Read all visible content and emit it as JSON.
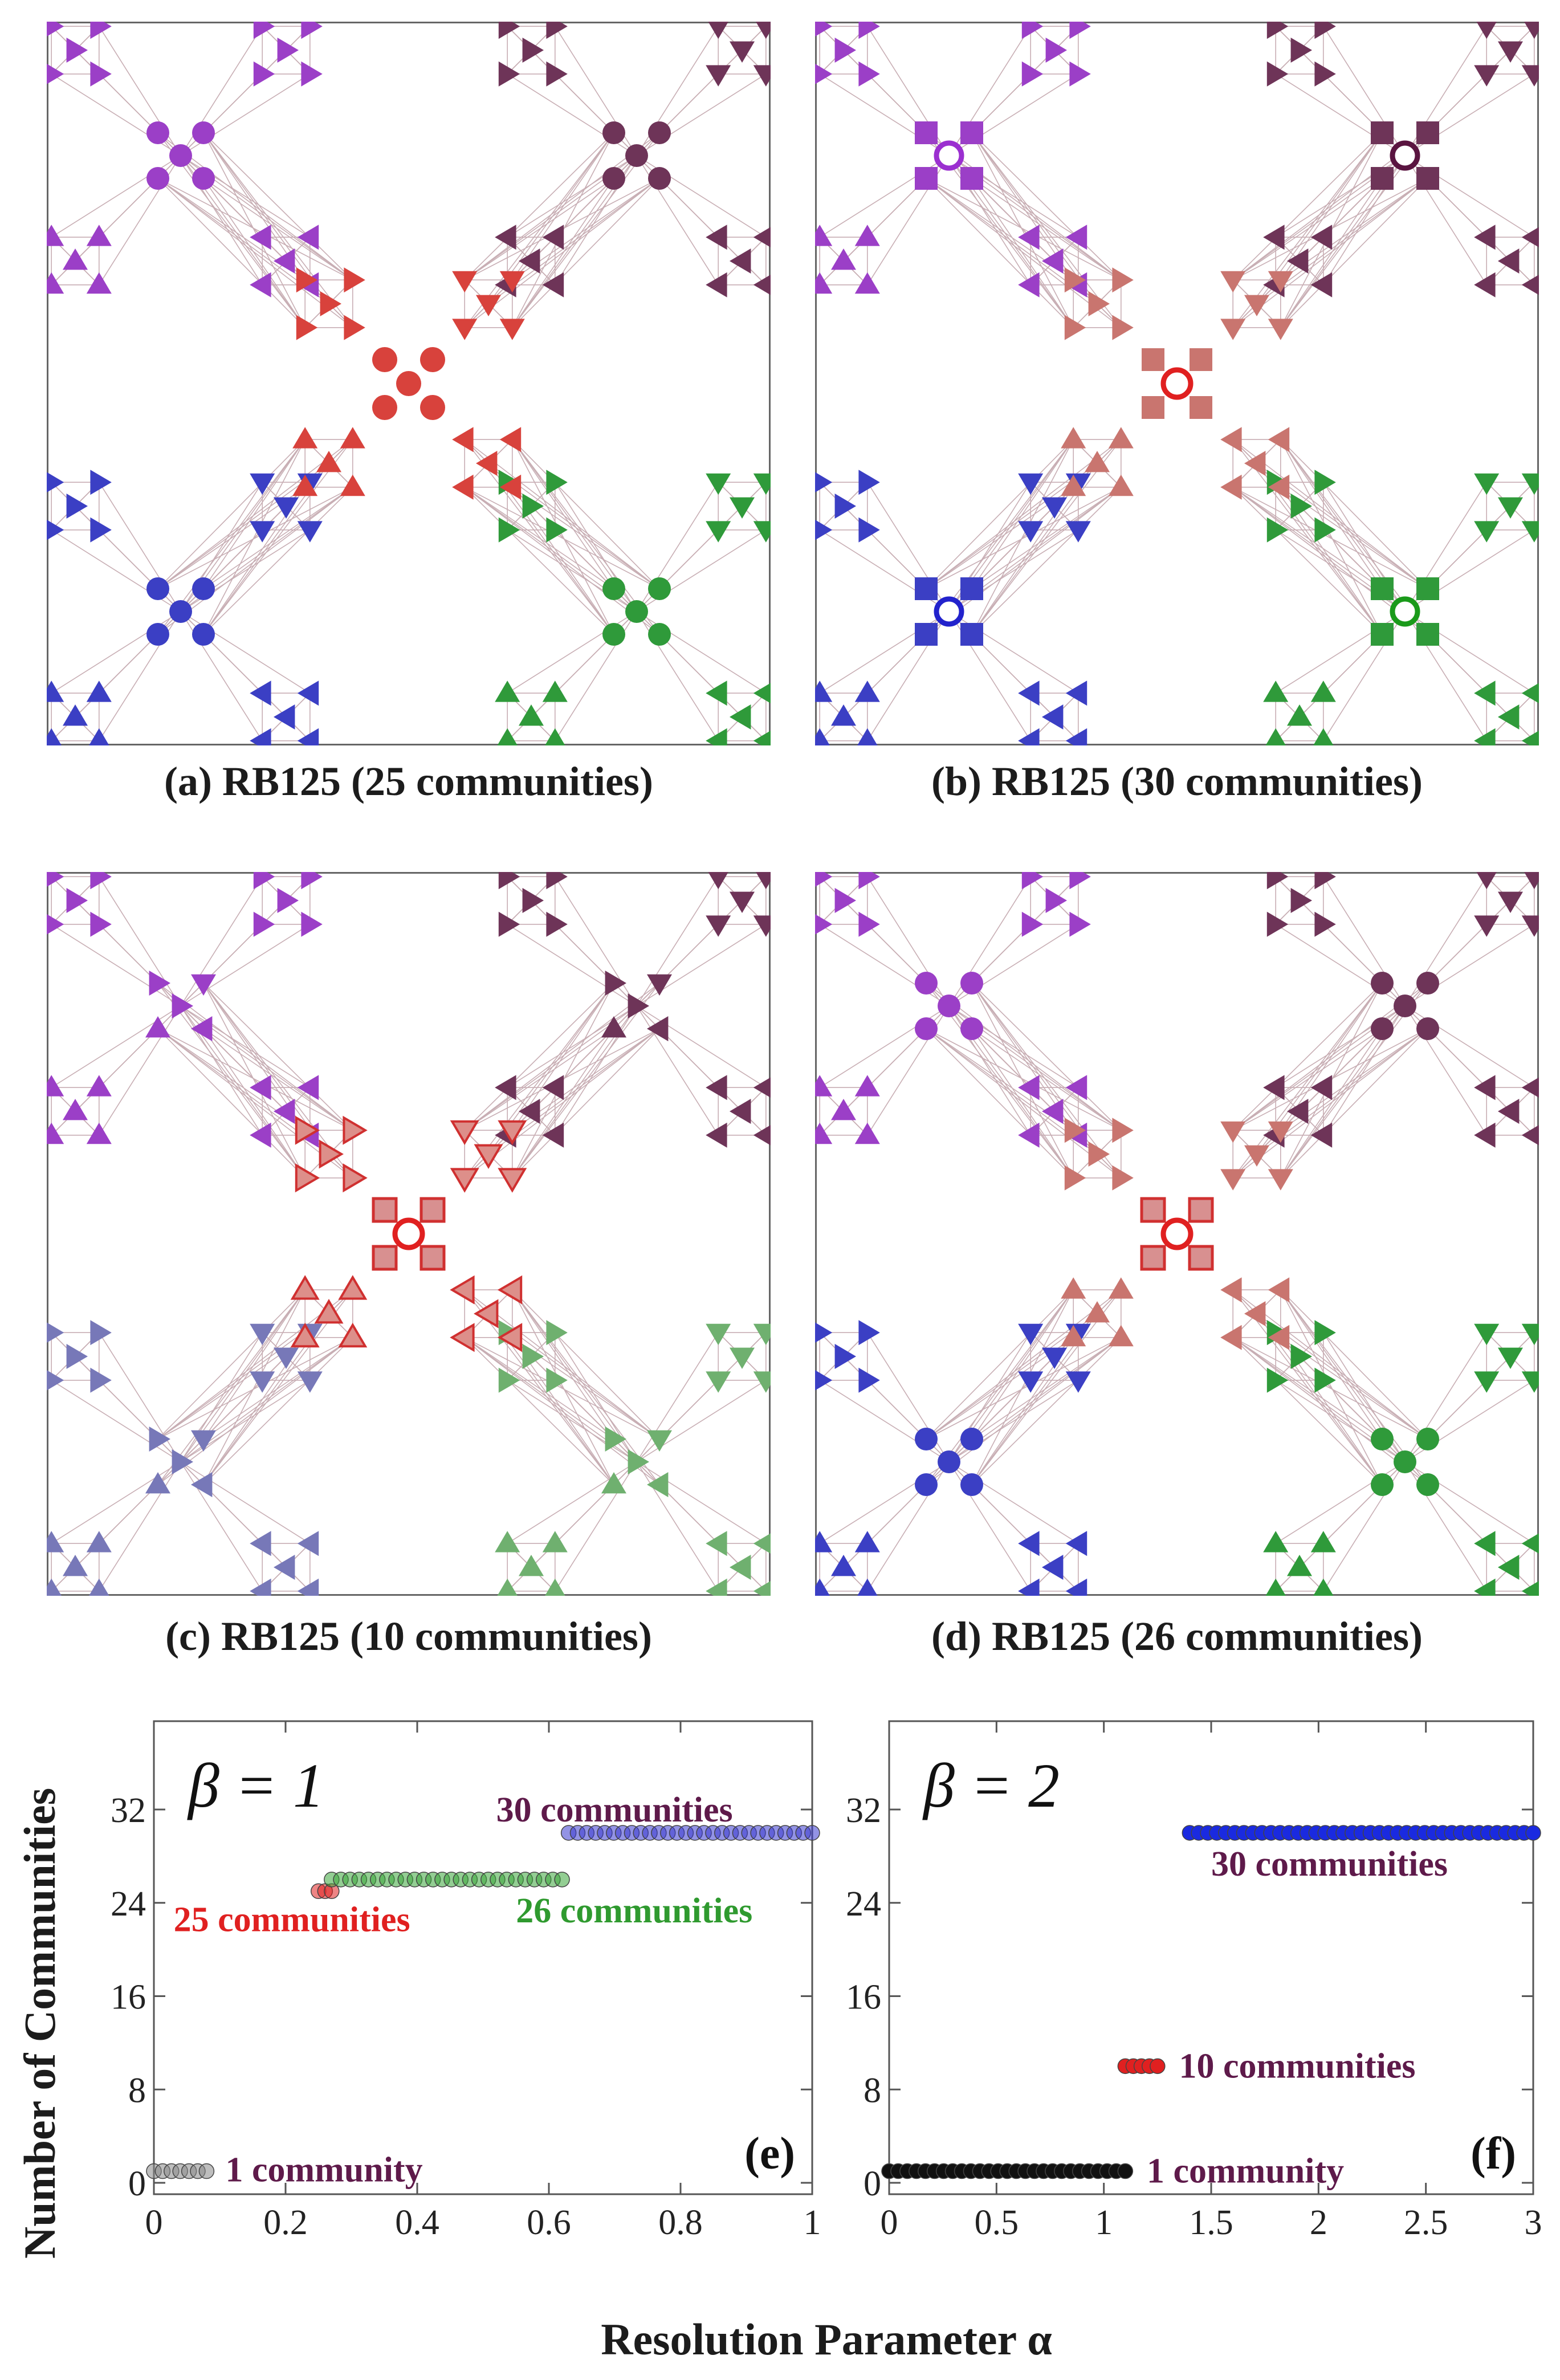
{
  "captions": {
    "a": "(a) RB125 (25 communities)",
    "b": "(b) RB125 (30 communities)",
    "c": "(c) RB125 (10 communities)",
    "d": "(d) RB125 (26 communities)"
  },
  "colors": {
    "purple": "#9b3fc7",
    "plum": "#6e3458",
    "red": "#d8423c",
    "salmon": "#c9756f",
    "blue": "#3b3fc4",
    "green": "#2f9a3a",
    "lightblue": "#7778b8",
    "lightgreen": "#6fb06f",
    "edge": "#c8aeb4"
  },
  "chart_data": [
    {
      "panel": "(e)",
      "type": "scatter",
      "annotation_beta": "β = 1",
      "xlim": [
        0,
        1
      ],
      "ylim": [
        0,
        32
      ],
      "x_ticks": [
        "0",
        "0.2",
        "0.4",
        "0.6",
        "0.8",
        "1"
      ],
      "y_ticks": [
        "0",
        "8",
        "16",
        "24",
        "32"
      ],
      "series": [
        {
          "color": "#888888",
          "x_start": 0.0,
          "x_end": 0.08,
          "y": 1,
          "label": "1 community",
          "label_color": "#5e1a4a"
        },
        {
          "color": "#e02020",
          "x_start": 0.25,
          "x_end": 0.27,
          "y": 25,
          "label": "25 communities",
          "label_color": "#e02020"
        },
        {
          "color": "#3aa53a",
          "x_start": 0.27,
          "x_end": 0.62,
          "y": 26,
          "label": "26 communities",
          "label_color": "#2f9a2f"
        },
        {
          "color": "#3a3ad0",
          "x_start": 0.63,
          "x_end": 1.0,
          "y": 30,
          "label": "30 communities",
          "label_color": "#5e1a4a"
        }
      ]
    },
    {
      "panel": "(f)",
      "type": "scatter",
      "annotation_beta": "β = 2",
      "xlim": [
        0,
        3
      ],
      "ylim": [
        0,
        32
      ],
      "x_ticks": [
        "0",
        "0.5",
        "1",
        "1.5",
        "2",
        "2.5",
        "3"
      ],
      "y_ticks": [
        "0",
        "8",
        "16",
        "24",
        "32"
      ],
      "series": [
        {
          "color": "#111111",
          "x_start": 0.0,
          "x_end": 1.1,
          "y": 1,
          "label": "1 community",
          "label_color": "#5e1a4a"
        },
        {
          "color": "#e02020",
          "x_start": 1.1,
          "x_end": 1.25,
          "y": 10,
          "label": "10 communities",
          "label_color": "#5e1a4a"
        },
        {
          "color": "#1a2ae0",
          "x_start": 1.4,
          "x_end": 3.0,
          "y": 30,
          "label": "30 communities",
          "label_color": "#5e1a4a"
        }
      ]
    }
  ],
  "axes": {
    "ylabel": "Number of Communities",
    "xlabel": "Resolution Parameter α"
  }
}
